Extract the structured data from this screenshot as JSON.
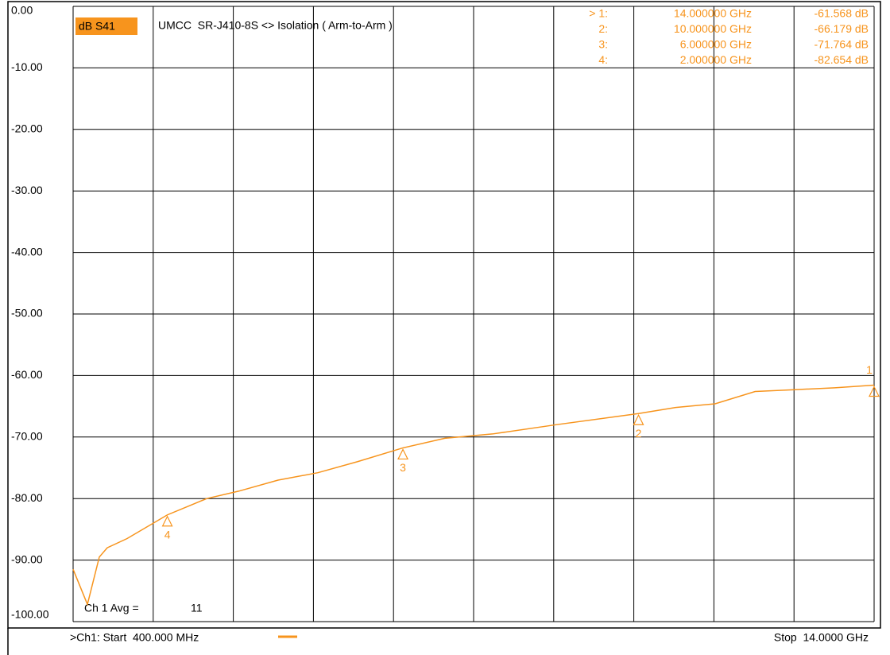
{
  "chart_data": {
    "type": "line",
    "title": "UMCC  SR-J410-8S <> Isolation ( Arm-to-Arm )",
    "x": [
      0.4,
      0.643,
      0.845,
      0.98,
      1.317,
      2.0,
      2.67,
      3.21,
      3.88,
      4.555,
      5.23,
      6.0,
      6.71,
      7.52,
      8.6,
      10.0,
      10.63,
      11.3,
      11.98,
      12.65,
      13.33,
      14.0
    ],
    "series": [
      {
        "name": "dB S41",
        "color": "#f7941d",
        "values": [
          -91.5,
          -97.2,
          -89.5,
          -88,
          -86.5,
          -82.654,
          -80,
          -78.8,
          -77,
          -75.8,
          -74,
          -71.764,
          -70.2,
          -69.5,
          -68,
          -66.179,
          -65.2,
          -64.6,
          -62.6,
          -62.3,
          -62,
          -61.568
        ]
      }
    ],
    "xlim": [
      0.4,
      14
    ],
    "xticks": [
      0.4,
      1.76,
      3.12,
      4.48,
      5.84,
      7.2,
      8.56,
      9.92,
      11.28,
      12.64,
      14
    ],
    "ylim": [
      -100,
      0
    ],
    "yticks": [
      {
        "value": 0,
        "label": "0.00"
      },
      {
        "value": -10,
        "label": "-10.00"
      },
      {
        "value": -20,
        "label": "-20.00"
      },
      {
        "value": -30,
        "label": "-30.00"
      },
      {
        "value": -40,
        "label": "-40.00"
      },
      {
        "value": -50,
        "label": "-50.00"
      },
      {
        "value": -60,
        "label": "-60.00"
      },
      {
        "value": -70,
        "label": "-70.00"
      },
      {
        "value": -80,
        "label": "-80.00"
      },
      {
        "value": -90,
        "label": "-90.00"
      },
      {
        "value": -100,
        "label": "-100.00"
      }
    ],
    "grid": true,
    "markers": [
      {
        "name": "1",
        "readout": "> 1:",
        "x": 14,
        "x_label": "14.000000 GHz",
        "value": -61.568,
        "value_label": "-61.568 dB"
      },
      {
        "name": "2",
        "readout": "2:",
        "x": 10,
        "x_label": "10.000000 GHz",
        "value": -66.179,
        "value_label": "-66.179 dB"
      },
      {
        "name": "3",
        "readout": "3:",
        "x": 6,
        "x_label": "6.000000 GHz",
        "value": -71.764,
        "value_label": "-71.764 dB"
      },
      {
        "name": "4",
        "readout": "4:",
        "x": 2,
        "x_label": "2.000000 GHz",
        "value": -82.654,
        "value_label": "-82.654 dB"
      }
    ],
    "averaging": {
      "label": "Ch 1 Avg =",
      "value": 11
    },
    "start_label": ">Ch1: Start  400.000 MHz",
    "stop_label": "Stop  14.0000 GHz"
  }
}
